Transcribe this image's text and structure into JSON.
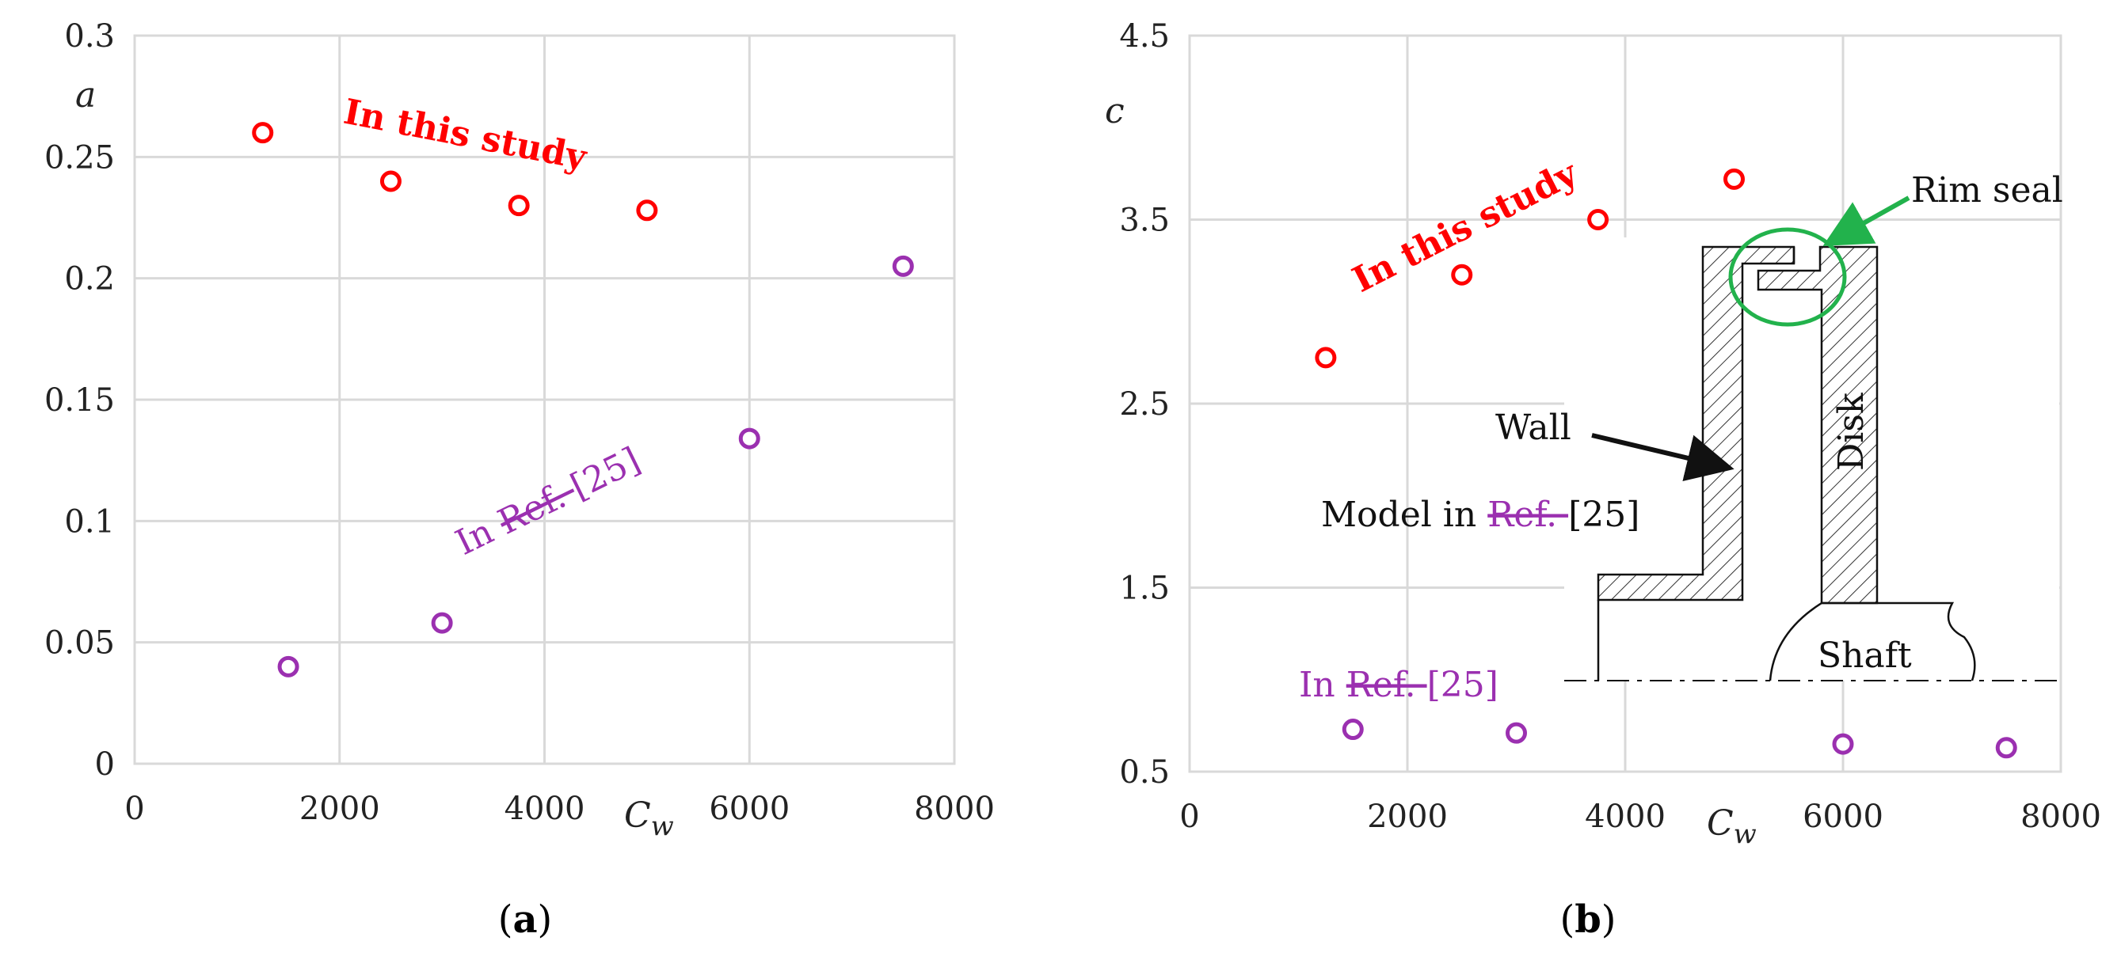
{
  "colors": {
    "study": "#ff0000",
    "ref": "#9b30b0",
    "rim_seal": "#22b24c",
    "grid": "#d9d9d9",
    "ink": "#111111"
  },
  "chart_data": [
    {
      "type": "scatter",
      "panel_caption": "a",
      "xlabel": "C",
      "xlabel_sub": "w",
      "ylabel": "a",
      "xlim": [
        0,
        8000
      ],
      "ylim": [
        0,
        0.3
      ],
      "xticks": [
        "0",
        "2000",
        "4000",
        "6000",
        "8000"
      ],
      "yticks": [
        "0",
        "0.05",
        "0.1",
        "0.15",
        "0.2",
        "0.25",
        "0.3"
      ],
      "grid": true,
      "series": [
        {
          "name": "In this study",
          "color": "#ff0000",
          "points": [
            {
              "x": 1250,
              "y": 0.26
            },
            {
              "x": 2500,
              "y": 0.24
            },
            {
              "x": 3750,
              "y": 0.23
            },
            {
              "x": 5000,
              "y": 0.228
            }
          ]
        },
        {
          "name": "In Ref. [25]",
          "name_prefix": "In ",
          "name_struck": "Ref. ",
          "name_suffix": "[25]",
          "color": "#9b30b0",
          "points": [
            {
              "x": 1500,
              "y": 0.04
            },
            {
              "x": 3000,
              "y": 0.058
            },
            {
              "x": 6000,
              "y": 0.134
            },
            {
              "x": 7500,
              "y": 0.205
            }
          ]
        }
      ]
    },
    {
      "type": "scatter",
      "panel_caption": "b",
      "xlabel": "C",
      "xlabel_sub": "w",
      "ylabel": "c",
      "xlim": [
        0,
        8000
      ],
      "ylim": [
        0.5,
        4.5
      ],
      "xticks": [
        "0",
        "2000",
        "4000",
        "6000",
        "8000"
      ],
      "yticks": [
        "0.5",
        "1.5",
        "2.5",
        "3.5",
        "4.5"
      ],
      "grid": true,
      "series": [
        {
          "name": "In this study",
          "color": "#ff0000",
          "points": [
            {
              "x": 1250,
              "y": 2.75
            },
            {
              "x": 2500,
              "y": 3.2
            },
            {
              "x": 3750,
              "y": 3.5
            },
            {
              "x": 5000,
              "y": 3.72
            }
          ]
        },
        {
          "name": "In Ref. [25]",
          "name_prefix": "In ",
          "name_struck": "Ref. ",
          "name_suffix": "[25]",
          "color": "#9b30b0",
          "points": [
            {
              "x": 1500,
              "y": 0.73
            },
            {
              "x": 3000,
              "y": 0.71
            },
            {
              "x": 6000,
              "y": 0.65
            },
            {
              "x": 7500,
              "y": 0.63
            }
          ]
        }
      ],
      "inset_diagram": {
        "wall_label": "Wall",
        "disk_label": "Disk",
        "shaft_label": "Shaft",
        "rim_seal_label": "Rim seal",
        "model_label_prefix": "Model in ",
        "model_label_struck": "Ref. ",
        "model_label_suffix": "[25]"
      }
    }
  ]
}
